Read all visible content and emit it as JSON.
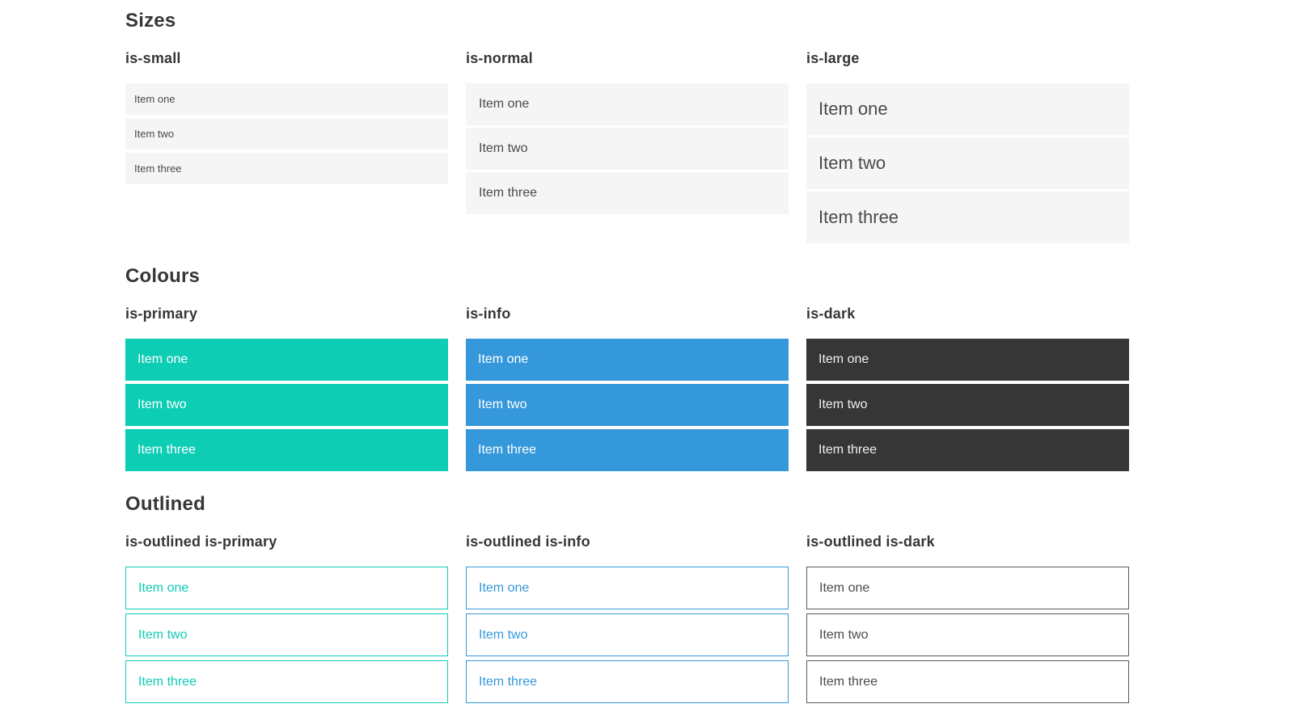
{
  "colors": {
    "primary": "#0dcdb5",
    "info": "#3498db",
    "dark": "#363636",
    "item_bg": "#f5f5f5",
    "item_text": "#4a4a4a",
    "heading": "#363636",
    "outlined_dark_border": "#5a5a5a"
  },
  "sections": [
    {
      "title": "Sizes",
      "groups": [
        {
          "label": "is-small",
          "items": [
            "Item one",
            "Item two",
            "Item three"
          ]
        },
        {
          "label": "is-normal",
          "items": [
            "Item one",
            "Item two",
            "Item three"
          ]
        },
        {
          "label": "is-large",
          "items": [
            "Item one",
            "Item two",
            "Item three"
          ]
        }
      ]
    },
    {
      "title": "Colours",
      "groups": [
        {
          "label": "is-primary",
          "items": [
            "Item one",
            "Item two",
            "Item three"
          ]
        },
        {
          "label": "is-info",
          "items": [
            "Item one",
            "Item two",
            "Item three"
          ]
        },
        {
          "label": "is-dark",
          "items": [
            "Item one",
            "Item two",
            "Item three"
          ]
        }
      ]
    },
    {
      "title": "Outlined",
      "groups": [
        {
          "label": "is-outlined is-primary",
          "items": [
            "Item one",
            "Item two",
            "Item three"
          ]
        },
        {
          "label": "is-outlined is-info",
          "items": [
            "Item one",
            "Item two",
            "Item three"
          ]
        },
        {
          "label": "is-outlined is-dark",
          "items": [
            "Item one",
            "Item two",
            "Item three"
          ]
        }
      ]
    }
  ]
}
